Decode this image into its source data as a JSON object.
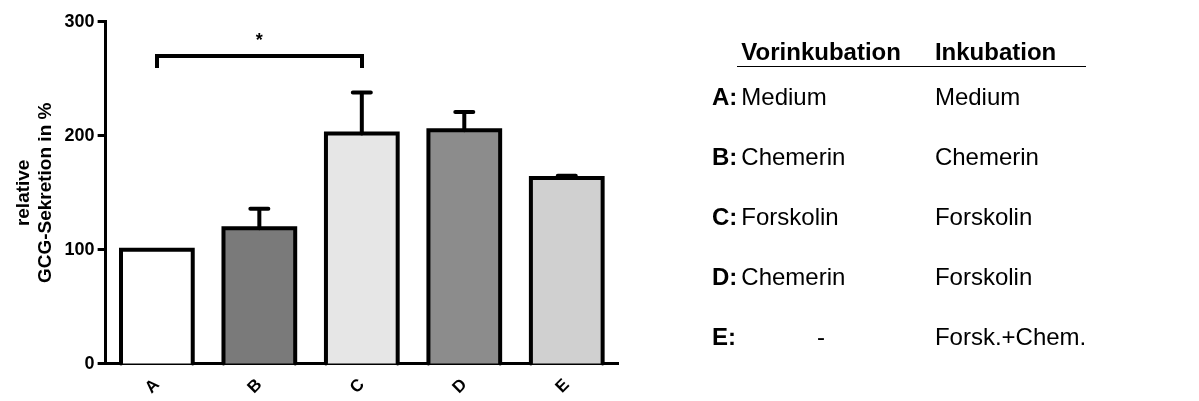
{
  "chart_data": [
    {
      "type": "bar",
      "ylabel": "relative GCG-Sekretion in %",
      "categories": [
        "A",
        "B",
        "C",
        "D",
        "E"
      ],
      "values": [
        100,
        119,
        202,
        205,
        163
      ],
      "colors": [
        "#ffffff",
        "#7a7a7a",
        "#e6e6e6",
        "#8c8c8c",
        "#d0d0d0"
      ],
      "errors": [
        null,
        17,
        36,
        16,
        2
      ],
      "ylim": [
        0,
        300
      ],
      "yticks": [
        0,
        100,
        200,
        300
      ],
      "grid": false,
      "legend": false,
      "annotations": [
        "*"
      ]
    },
    {
      "type": "other",
      "annotations": [
        "Vorinkubation",
        "Inkubation",
        "A:",
        "Medium",
        "Medium",
        "B:",
        "Chemerin",
        "Chemerin",
        "C:",
        "Forskolin",
        "Forskolin",
        "D:",
        "Chemerin",
        "Forskolin",
        "E:",
        "-",
        "Forsk.+Chem."
      ]
    }
  ]
}
